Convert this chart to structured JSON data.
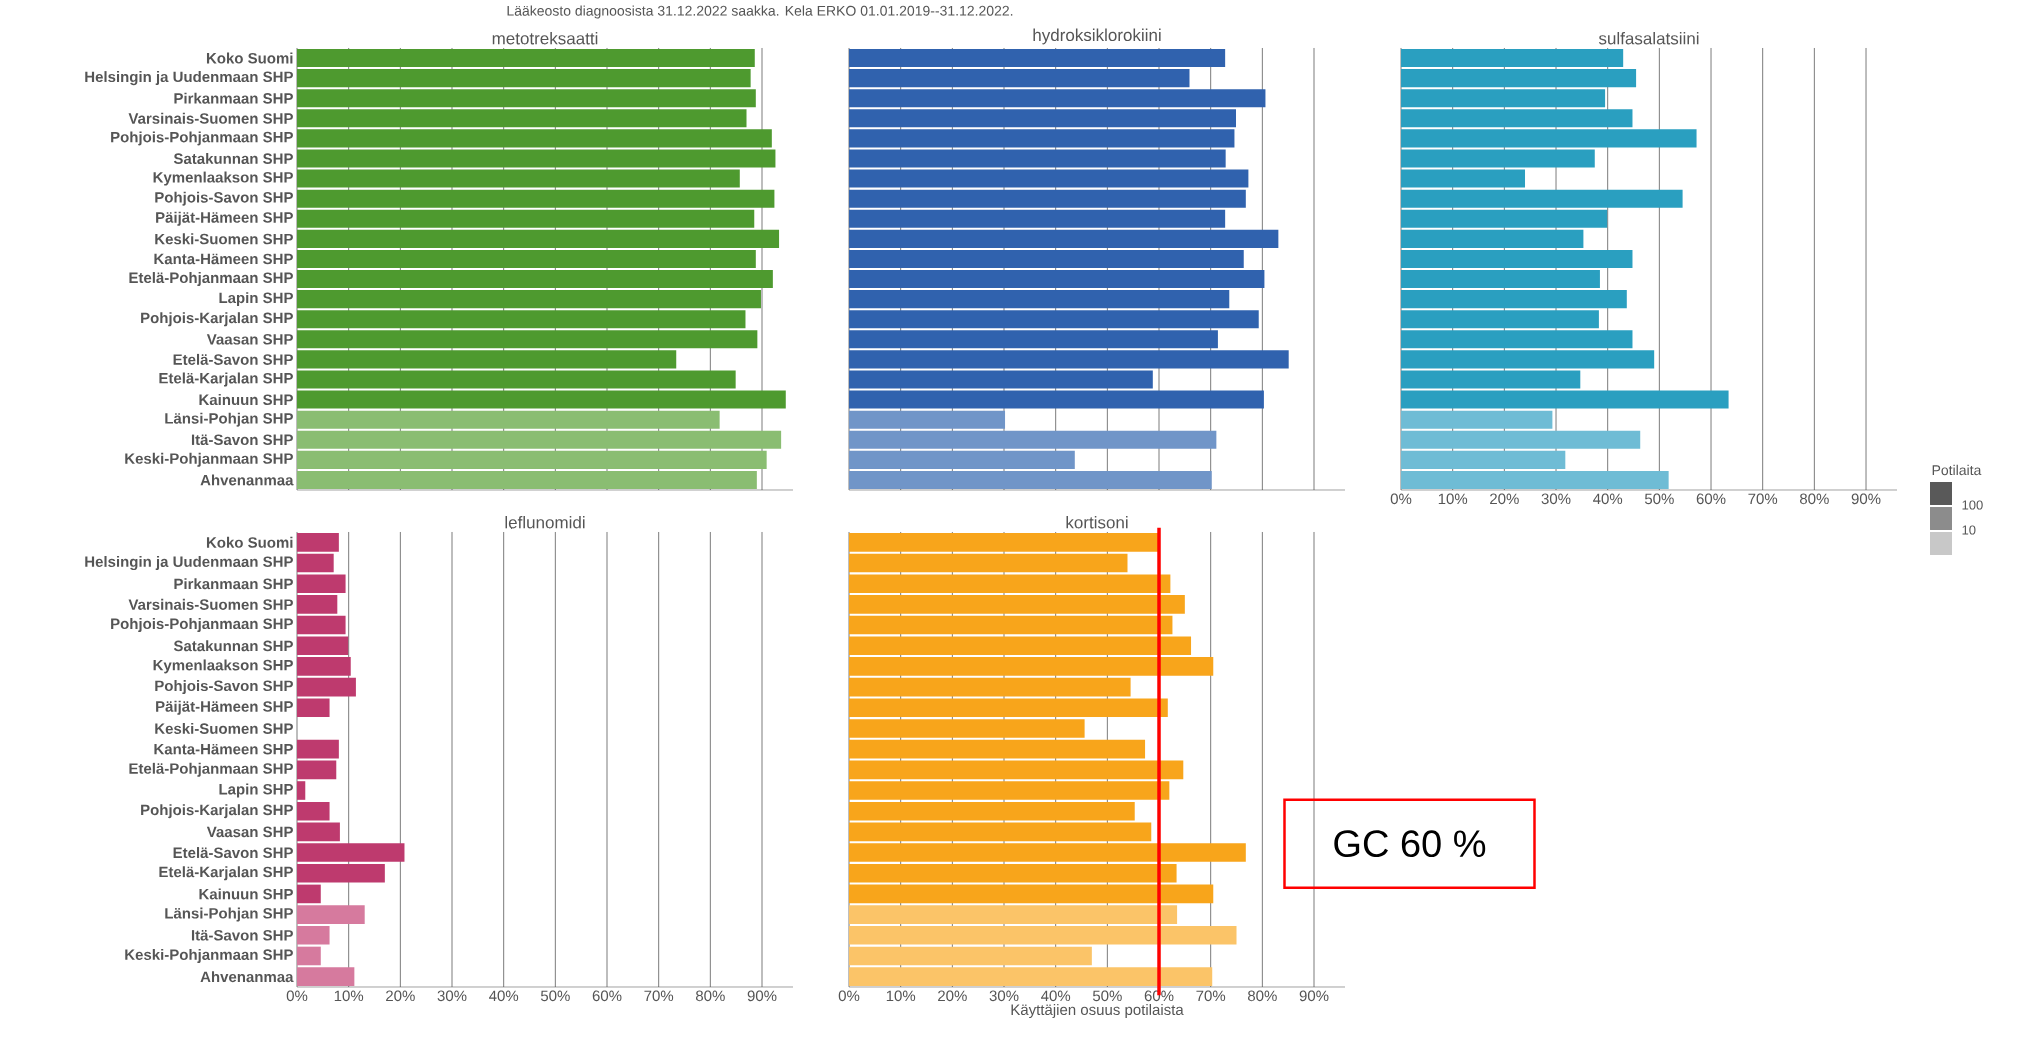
{
  "chart_data": [
    {
      "type": "bar",
      "orientation": "horizontal",
      "title": "metotreksaatti",
      "subtitle": "Lääkeosto diagnoosista 31.12.2022 saakka. Kela ERKO 01.01.2019--31.12.2022.",
      "categories": [
        "Koko Suomi",
        "Helsingin ja Uudenmaan SHP",
        "Pirkanmaan SHP",
        "Varsinais-Suomen SHP",
        "Pohjois-Pohjanmaan SHP",
        "Satakunnan SHP",
        "Kymenlaakson SHP",
        "Pohjois-Savon SHP",
        "Päijät-Hämeen SHP",
        "Keski-Suomen SHP",
        "Kanta-Hämeen SHP",
        "Etelä-Pohjanmaan SHP",
        "Lapin SHP",
        "Pohjois-Karjalan SHP",
        "Vaasan SHP",
        "Etelä-Savon SHP",
        "Etelä-Karjalan SHP",
        "Kainuun SHP",
        "Länsi-Pohjan SHP",
        "Itä-Savon SHP",
        "Keski-Pohjanmaan SHP",
        "Ahvenanmaa"
      ],
      "values": [
        88.6,
        87.8,
        88.8,
        87.0,
        91.9,
        92.6,
        85.7,
        92.4,
        88.5,
        93.3,
        88.8,
        92.1,
        89.8,
        86.8,
        89.1,
        73.4,
        84.9,
        94.6,
        81.8,
        93.7,
        90.9,
        89.0
      ],
      "colors": [
        "#4e9a2f",
        "#4e9a2f",
        "#4e9a2f",
        "#4e9a2f",
        "#4e9a2f",
        "#4e9a2f",
        "#4e9a2f",
        "#4e9a2f",
        "#4e9a2f",
        "#4e9a2f",
        "#4e9a2f",
        "#4e9a2f",
        "#4e9a2f",
        "#4e9a2f",
        "#4e9a2f",
        "#4e9a2f",
        "#4e9a2f",
        "#4e9a2f",
        "#8abd72",
        "#8abd72",
        "#8abd72",
        "#8abd72"
      ],
      "xlim": [
        0,
        96
      ],
      "xticks": [
        0,
        10,
        20,
        30,
        40,
        50,
        60,
        70,
        80,
        90
      ],
      "grid": "x",
      "tick_labels": "y"
    },
    {
      "type": "bar",
      "orientation": "horizontal",
      "title": "hydroksiklorokiini",
      "categories": [
        null,
        null,
        null,
        null,
        null,
        null,
        null,
        null,
        null,
        null,
        null,
        null,
        null,
        null,
        null,
        null,
        null,
        null,
        null,
        null,
        null,
        null
      ],
      "values": [
        72.8,
        65.9,
        80.6,
        74.9,
        74.6,
        72.9,
        77.3,
        76.8,
        72.8,
        83.1,
        76.4,
        80.4,
        73.6,
        79.3,
        71.4,
        85.1,
        58.8,
        80.3,
        30.2,
        71.1,
        43.7,
        70.2
      ],
      "colors": [
        "#3062ae",
        "#3062ae",
        "#3062ae",
        "#3062ae",
        "#3062ae",
        "#3062ae",
        "#3062ae",
        "#3062ae",
        "#3062ae",
        "#3062ae",
        "#3062ae",
        "#3062ae",
        "#3062ae",
        "#3062ae",
        "#3062ae",
        "#3062ae",
        "#3062ae",
        "#3062ae",
        "#7095c8",
        "#7095c8",
        "#7095c8",
        "#7095c8"
      ],
      "xlim": [
        0,
        96
      ],
      "xticks": [
        0,
        10,
        20,
        30,
        40,
        50,
        60,
        70,
        80,
        90
      ],
      "grid": "x",
      "tick_labels": false
    },
    {
      "type": "bar",
      "orientation": "horizontal",
      "title": "sulfasalatsiini",
      "legend_title": "Potilaita",
      "annotations": [
        "100",
        "10"
      ],
      "categories": [
        null,
        null,
        null,
        null,
        null,
        null,
        null,
        null,
        null,
        null,
        null,
        null,
        null,
        null,
        null,
        null,
        null,
        null,
        null,
        null,
        null,
        null
      ],
      "values": [
        43.0,
        45.5,
        39.5,
        44.8,
        57.2,
        37.5,
        24.0,
        54.5,
        39.9,
        35.3,
        44.8,
        38.5,
        43.7,
        38.3,
        44.8,
        49.0,
        34.7,
        63.4,
        29.3,
        46.3,
        31.8,
        51.8
      ],
      "colors": [
        "#2a9fc0",
        "#2a9fc0",
        "#2a9fc0",
        "#2a9fc0",
        "#2a9fc0",
        "#2a9fc0",
        "#2a9fc0",
        "#2a9fc0",
        "#2a9fc0",
        "#2a9fc0",
        "#2a9fc0",
        "#2a9fc0",
        "#2a9fc0",
        "#2a9fc0",
        "#2a9fc0",
        "#2a9fc0",
        "#2a9fc0",
        "#2a9fc0",
        "#6fbcd5",
        "#6fbcd5",
        "#6fbcd5",
        "#6fbcd5"
      ],
      "xlim": [
        0,
        96
      ],
      "xticks": [
        {
          "value": 0,
          "label": "0%"
        },
        {
          "value": 10,
          "label": "10%"
        },
        {
          "value": 20,
          "label": "20%"
        },
        {
          "value": 30,
          "label": "30%"
        },
        {
          "value": 40,
          "label": "40%"
        },
        {
          "value": 50,
          "label": "50%"
        },
        {
          "value": 60,
          "label": "60%"
        },
        {
          "value": 70,
          "label": "70%"
        },
        {
          "value": 80,
          "label": "80%"
        },
        {
          "value": 90,
          "label": "90%"
        }
      ],
      "grid": "x",
      "tick_labels": "x"
    },
    {
      "type": "bar",
      "orientation": "horizontal",
      "title": "leflunomidi",
      "categories": [
        "Koko Suomi",
        "Helsingin ja Uudenmaan SHP",
        "Pirkanmaan SHP",
        "Varsinais-Suomen SHP",
        "Pohjois-Pohjanmaan SHP",
        "Satakunnan SHP",
        "Kymenlaakson SHP",
        "Pohjois-Savon SHP",
        "Päijät-Hämeen SHP",
        "Keski-Suomen SHP",
        "Kanta-Hämeen SHP",
        "Etelä-Pohjanmaan SHP",
        "Lapin SHP",
        "Pohjois-Karjalan SHP",
        "Vaasan SHP",
        "Etelä-Savon SHP",
        "Etelä-Karjalan SHP",
        "Kainuun SHP",
        "Länsi-Pohjan SHP",
        "Itä-Savon SHP",
        "Keski-Pohjanmaan SHP",
        "Ahvenanmaa"
      ],
      "values": [
        8.1,
        7.1,
        9.4,
        7.8,
        9.4,
        9.9,
        10.4,
        11.4,
        6.3,
        0,
        8.1,
        7.6,
        1.6,
        6.3,
        8.3,
        20.8,
        17.0,
        4.6,
        13.1,
        6.3,
        4.6,
        11.1
      ],
      "colors": [
        "#be3a6e",
        "#be3a6e",
        "#be3a6e",
        "#be3a6e",
        "#be3a6e",
        "#be3a6e",
        "#be3a6e",
        "#be3a6e",
        "#be3a6e",
        "#be3a6e",
        "#be3a6e",
        "#be3a6e",
        "#be3a6e",
        "#be3a6e",
        "#be3a6e",
        "#be3a6e",
        "#be3a6e",
        "#be3a6e",
        "#d67a9e",
        "#d67a9e",
        "#d67a9e",
        "#d67a9e"
      ],
      "xlim": [
        0,
        96
      ],
      "xticks": [
        {
          "value": 0,
          "label": "0%"
        },
        {
          "value": 10,
          "label": "10%"
        },
        {
          "value": 20,
          "label": "20%"
        },
        {
          "value": 30,
          "label": "30%"
        },
        {
          "value": 40,
          "label": "40%"
        },
        {
          "value": 50,
          "label": "50%"
        },
        {
          "value": 60,
          "label": "60%"
        },
        {
          "value": 70,
          "label": "70%"
        },
        {
          "value": 80,
          "label": "80%"
        },
        {
          "value": 90,
          "label": "90%"
        }
      ],
      "grid": "x"
    },
    {
      "type": "bar",
      "orientation": "horizontal",
      "title": "kortisoni",
      "xlabel": "Käyttäjien osuus potilaista",
      "annotations": [
        "GC 60 %"
      ],
      "categories": [
        null,
        null,
        null,
        null,
        null,
        null,
        null,
        null,
        null,
        null,
        null,
        null,
        null,
        null,
        null,
        null,
        null,
        null,
        null,
        null,
        null,
        null
      ],
      "values": [
        60.0,
        53.9,
        62.2,
        65.0,
        62.6,
        66.2,
        70.5,
        54.5,
        61.7,
        45.6,
        57.3,
        64.7,
        62.0,
        55.3,
        58.5,
        76.8,
        63.4,
        70.5,
        63.5,
        75.0,
        47.0,
        70.3
      ],
      "colors": [
        "#f8a51b",
        "#f8a51b",
        "#f8a51b",
        "#f8a51b",
        "#f8a51b",
        "#f8a51b",
        "#f8a51b",
        "#f8a51b",
        "#f8a51b",
        "#f8a51b",
        "#f8a51b",
        "#f8a51b",
        "#f8a51b",
        "#f8a51b",
        "#f8a51b",
        "#f8a51b",
        "#f8a51b",
        "#f8a51b",
        "#fbc468",
        "#fbc468",
        "#fbc468",
        "#fbc468"
      ],
      "xlim": [
        0,
        96
      ],
      "xticks": [
        {
          "value": 0,
          "label": "0%"
        },
        {
          "value": 10,
          "label": "10%"
        },
        {
          "value": 20,
          "label": "20%"
        },
        {
          "value": 30,
          "label": "30%"
        },
        {
          "value": 40,
          "label": "40%"
        },
        {
          "value": 50,
          "label": "50%"
        },
        {
          "value": 60,
          "label": "60%"
        },
        {
          "value": 70,
          "label": "70%"
        },
        {
          "value": 80,
          "label": "80%"
        },
        {
          "value": 90,
          "label": "90%"
        }
      ],
      "ref_lines": [
        {
          "axis": "x",
          "value": 60,
          "color": "#ff0000"
        }
      ],
      "grid": "x",
      "tick_labels": "x"
    }
  ]
}
